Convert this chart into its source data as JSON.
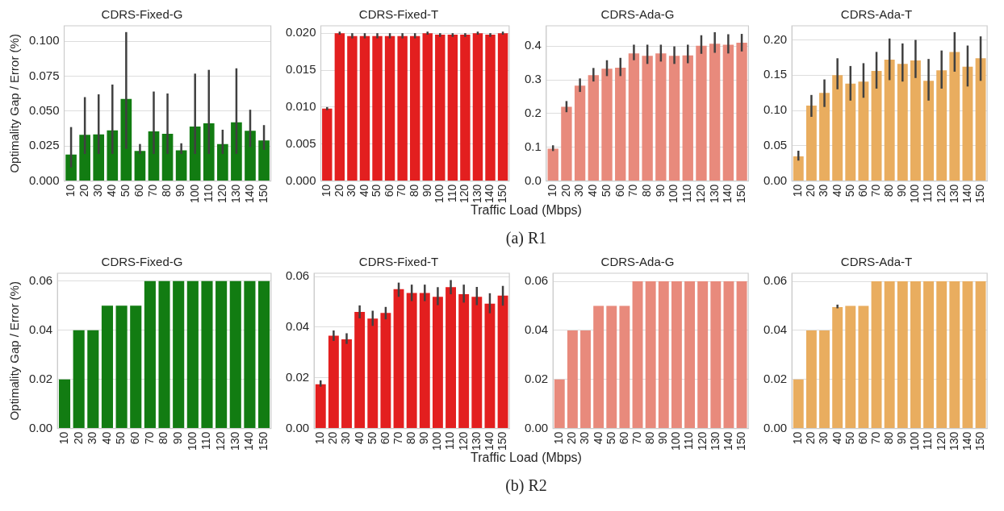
{
  "chart_data": [
    {
      "type": "bar",
      "title": "CDRS-Fixed-G",
      "ylabel": "Optimality Gap / Error (%)",
      "annotations": [
        "(a) R1"
      ],
      "categories": [
        "10",
        "20",
        "30",
        "40",
        "50",
        "60",
        "70",
        "80",
        "90",
        "100",
        "110",
        "120",
        "130",
        "140",
        "150"
      ],
      "color": "#127c12",
      "values": [
        0.019,
        0.033,
        0.0334,
        0.0363,
        0.0587,
        0.0215,
        0.0355,
        0.0338,
        0.022,
        0.039,
        0.0413,
        0.0265,
        0.042,
        0.036,
        0.029
      ],
      "errors": [
        [
          0.0098,
          0.0386
        ],
        [
          0.0194,
          0.06
        ],
        [
          0.0194,
          0.062
        ],
        [
          0.0194,
          0.069
        ],
        [
          0.023,
          0.1065
        ],
        [
          0.0194,
          0.0265
        ],
        [
          0.0194,
          0.064
        ],
        [
          0.0194,
          0.0626
        ],
        [
          0.0194,
          0.027
        ],
        [
          0.0194,
          0.0768
        ],
        [
          0.0194,
          0.0795
        ],
        [
          0.0194,
          0.0367
        ],
        [
          0.0194,
          0.0806
        ],
        [
          0.0244,
          0.051
        ],
        [
          0.0223,
          0.04
        ]
      ],
      "ylim": [
        0,
        0.111
      ],
      "yticks": [
        {
          "value": 0,
          "label": "0.000"
        },
        0.025,
        {
          "value": 0.05,
          "label": "0.050"
        },
        0.075,
        {
          "value": 0.1,
          "label": "0.100"
        }
      ],
      "grid": "y"
    },
    {
      "type": "bar",
      "title": "CDRS-Fixed-T",
      "xlabel": "Traffic Load (Mbps)",
      "categories": [
        "10",
        "20",
        "30",
        "40",
        "50",
        "60",
        "70",
        "80",
        "90",
        "100",
        "110",
        "120",
        "130",
        "140",
        "150"
      ],
      "color": "#e31f1f",
      "values": [
        0.0098,
        0.02,
        0.0196,
        0.0196,
        0.0196,
        0.0196,
        0.0196,
        0.0196,
        0.02,
        0.0198,
        0.0198,
        0.0198,
        0.02,
        0.0198,
        0.02
      ],
      "errors": [
        [
          0.0097,
          0.0099
        ],
        [
          0.0199,
          0.0201
        ],
        [
          0.0193,
          0.02
        ],
        [
          0.0193,
          0.02
        ],
        [
          0.0193,
          0.02
        ],
        [
          0.0193,
          0.02
        ],
        [
          0.0193,
          0.02
        ],
        [
          0.0193,
          0.02
        ],
        [
          0.0199,
          0.0201
        ],
        [
          0.0195,
          0.02
        ],
        [
          0.0195,
          0.02
        ],
        [
          0.0195,
          0.02
        ],
        [
          0.0199,
          0.0201
        ],
        [
          0.0195,
          0.02
        ],
        [
          0.0199,
          0.0201
        ]
      ],
      "ylim": [
        0,
        0.021
      ],
      "yticks": [
        {
          "value": 0,
          "label": "0.000"
        },
        0.005,
        {
          "value": 0.01,
          "label": "0.010"
        },
        0.015,
        {
          "value": 0.02,
          "label": "0.020"
        }
      ],
      "grid": "y"
    },
    {
      "type": "bar",
      "title": "CDRS-Ada-G",
      "categories": [
        "10",
        "20",
        "30",
        "40",
        "50",
        "60",
        "70",
        "80",
        "90",
        "100",
        "110",
        "120",
        "130",
        "140",
        "150"
      ],
      "color": "#e88a7c",
      "values": [
        0.096,
        0.22,
        0.283,
        0.314,
        0.333,
        0.336,
        0.378,
        0.371,
        0.378,
        0.371,
        0.372,
        0.401,
        0.407,
        0.404,
        0.41
      ],
      "errors": [
        [
          0.089,
          0.106
        ],
        [
          0.204,
          0.237
        ],
        [
          0.264,
          0.304
        ],
        [
          0.295,
          0.335
        ],
        [
          0.311,
          0.358
        ],
        [
          0.311,
          0.365
        ],
        [
          0.358,
          0.404
        ],
        [
          0.347,
          0.404
        ],
        [
          0.354,
          0.404
        ],
        [
          0.347,
          0.399
        ],
        [
          0.349,
          0.404
        ],
        [
          0.377,
          0.432
        ],
        [
          0.38,
          0.441
        ],
        [
          0.378,
          0.435
        ],
        [
          0.384,
          0.436
        ]
      ],
      "ylim": [
        0,
        0.46
      ],
      "yticks": [
        {
          "value": 0,
          "label": "0.0"
        },
        0.1,
        0.2,
        0.3,
        0.4
      ],
      "grid": "y"
    },
    {
      "type": "bar",
      "title": "CDRS-Ada-T",
      "categories": [
        "10",
        "20",
        "30",
        "40",
        "50",
        "60",
        "70",
        "80",
        "90",
        "100",
        "110",
        "120",
        "130",
        "140",
        "150"
      ],
      "color": "#e9ad5f",
      "values": [
        0.035,
        0.107,
        0.125,
        0.15,
        0.138,
        0.141,
        0.156,
        0.172,
        0.166,
        0.171,
        0.142,
        0.157,
        0.183,
        0.162,
        0.174
      ],
      "errors": [
        [
          0.029,
          0.043
        ],
        [
          0.091,
          0.122
        ],
        [
          0.105,
          0.144
        ],
        [
          0.13,
          0.174
        ],
        [
          0.114,
          0.163
        ],
        [
          0.118,
          0.167
        ],
        [
          0.131,
          0.183
        ],
        [
          0.143,
          0.202
        ],
        [
          0.141,
          0.195
        ],
        [
          0.146,
          0.2
        ],
        [
          0.114,
          0.173
        ],
        [
          0.131,
          0.185
        ],
        [
          0.155,
          0.211
        ],
        [
          0.134,
          0.192
        ],
        [
          0.142,
          0.205
        ]
      ],
      "ylim": [
        0,
        0.22
      ],
      "yticks": [
        {
          "value": 0,
          "label": "0.00"
        },
        0.05,
        {
          "value": 0.1,
          "label": "0.10"
        },
        0.15,
        {
          "value": 0.2,
          "label": "0.20"
        }
      ],
      "grid": "y"
    },
    {
      "type": "bar",
      "title": "CDRS-Fixed-G",
      "ylabel": "Optimality Gap / Error (%)",
      "annotations": [
        "(b) R2"
      ],
      "categories": [
        "10",
        "20",
        "30",
        "40",
        "50",
        "60",
        "70",
        "80",
        "90",
        "100",
        "110",
        "120",
        "130",
        "140",
        "150"
      ],
      "color": "#127c12",
      "values": [
        0.02,
        0.04,
        0.04,
        0.05,
        0.05,
        0.05,
        0.06,
        0.06,
        0.06,
        0.06,
        0.06,
        0.06,
        0.06,
        0.06,
        0.06
      ],
      "ylim": [
        0,
        0.0632
      ],
      "yticks": [
        {
          "value": 0,
          "label": "0.00"
        },
        0.02,
        0.04,
        0.06
      ],
      "grid": "y"
    },
    {
      "type": "bar",
      "title": "CDRS-Fixed-T",
      "xlabel": "Traffic Load (Mbps)",
      "categories": [
        "10",
        "20",
        "30",
        "40",
        "50",
        "60",
        "70",
        "80",
        "90",
        "100",
        "110",
        "120",
        "130",
        "140",
        "150"
      ],
      "color": "#e31f1f",
      "values": [
        0.0175,
        0.0366,
        0.0352,
        0.046,
        0.0434,
        0.0456,
        0.055,
        0.0535,
        0.0535,
        0.052,
        0.0558,
        0.053,
        0.052,
        0.0493,
        0.0525
      ],
      "errors": [
        [
          0.0165,
          0.019
        ],
        [
          0.0346,
          0.0387
        ],
        [
          0.0334,
          0.0376
        ],
        [
          0.0435,
          0.0486
        ],
        [
          0.0405,
          0.0465
        ],
        [
          0.0431,
          0.048
        ],
        [
          0.052,
          0.0576
        ],
        [
          0.0503,
          0.0568
        ],
        [
          0.0503,
          0.0568
        ],
        [
          0.0487,
          0.0558
        ],
        [
          0.053,
          0.0586
        ],
        [
          0.0497,
          0.0568
        ],
        [
          0.0487,
          0.0559
        ],
        [
          0.0455,
          0.0534
        ],
        [
          0.0485,
          0.0563
        ]
      ],
      "ylim": [
        0,
        0.0613
      ],
      "yticks": [
        {
          "value": 0,
          "label": "0.00"
        },
        0.02,
        0.04,
        0.06
      ],
      "grid": "y"
    },
    {
      "type": "bar",
      "title": "CDRS-Ada-G",
      "categories": [
        "10",
        "20",
        "30",
        "40",
        "50",
        "60",
        "70",
        "80",
        "90",
        "100",
        "110",
        "120",
        "130",
        "140",
        "150"
      ],
      "color": "#e88a7c",
      "values": [
        0.02,
        0.04,
        0.04,
        0.05,
        0.05,
        0.05,
        0.06,
        0.06,
        0.06,
        0.06,
        0.06,
        0.06,
        0.06,
        0.06,
        0.06
      ],
      "ylim": [
        0,
        0.0633
      ],
      "yticks": [
        {
          "value": 0,
          "label": "0.00"
        },
        0.02,
        0.04,
        0.06
      ],
      "grid": "y"
    },
    {
      "type": "bar",
      "title": "CDRS-Ada-T",
      "categories": [
        "10",
        "20",
        "30",
        "40",
        "50",
        "60",
        "70",
        "80",
        "90",
        "100",
        "110",
        "120",
        "130",
        "140",
        "150"
      ],
      "color": "#e9ad5f",
      "values": [
        0.02,
        0.04,
        0.04,
        0.0495,
        0.05,
        0.05,
        0.06,
        0.06,
        0.06,
        0.06,
        0.06,
        0.06,
        0.06,
        0.06,
        0.06
      ],
      "errors": [
        null,
        null,
        null,
        [
          0.049,
          0.0505
        ],
        null,
        null,
        null,
        null,
        null,
        null,
        null,
        null,
        null,
        null,
        null
      ],
      "ylim": [
        0,
        0.0633
      ],
      "yticks": [
        {
          "value": 0,
          "label": "0.00"
        },
        0.02,
        0.04,
        0.06
      ],
      "grid": "y"
    }
  ]
}
